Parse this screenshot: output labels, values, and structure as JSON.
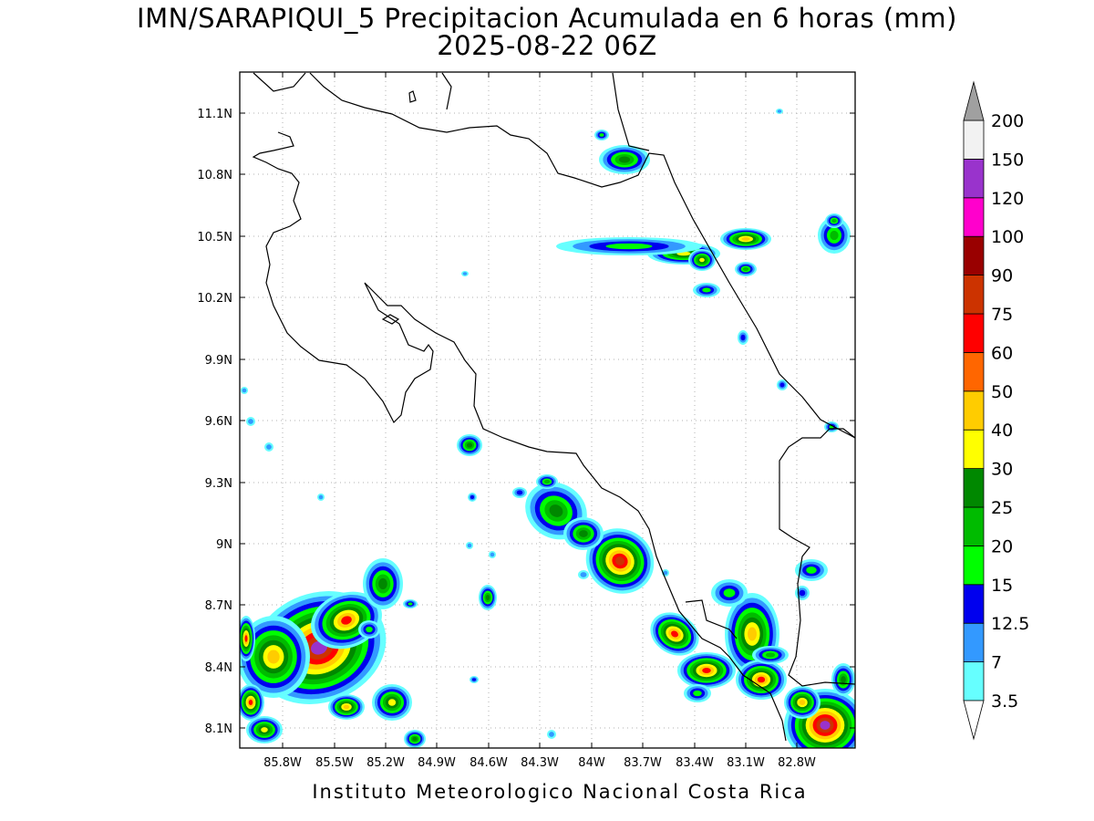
{
  "title_line1": "IMN/SARAPIQUI_5 Precipitacion Acumulada en 6 horas (mm)",
  "title_line2": "2025-08-22 06Z",
  "credit": "Instituto Meteorologico Nacional Costa Rica",
  "map": {
    "lon_range": [
      -86.05,
      -83.01
    ],
    "lat_range": [
      8.0,
      11.3
    ],
    "lat_ticks": [
      "11.1N",
      "10.8N",
      "10.5N",
      "10.2N",
      "9.9N",
      "9.6N",
      "9.3N",
      "9N",
      "8.7N",
      "8.4N",
      "8.1N"
    ],
    "lon_ticks": [
      "85.8W",
      "85.5W",
      "85.2W",
      "84.9W",
      "84.6W",
      "84.3W",
      "84W",
      "83.7W",
      "83.4W",
      "83.1W",
      "82.8W"
    ]
  },
  "colorbar": {
    "labels": [
      "3.5",
      "7",
      "12.5",
      "15",
      "20",
      "25",
      "30",
      "40",
      "50",
      "60",
      "75",
      "90",
      "100",
      "120",
      "150",
      "200"
    ],
    "colors": [
      "#ffffff",
      "#66ffff",
      "#3399ff",
      "#0000ee",
      "#00ff00",
      "#00bb00",
      "#008800",
      "#ffff00",
      "#ffcc00",
      "#ff6600",
      "#ff0000",
      "#cc3300",
      "#990000",
      "#ff00cc",
      "#9933cc",
      "#f2f2f2",
      "#a0a0a0"
    ]
  },
  "precip_colors": {
    "p3_5": "#66ffff",
    "p7": "#3399ff",
    "p12_5": "#0000ee",
    "p15": "#00ff00",
    "p20": "#00bb00",
    "p25": "#008800",
    "p30": "#ffff00",
    "p40": "#ffcc00",
    "p60": "#ff0000",
    "p75": "#cc3300",
    "p150": "#9933cc"
  }
}
